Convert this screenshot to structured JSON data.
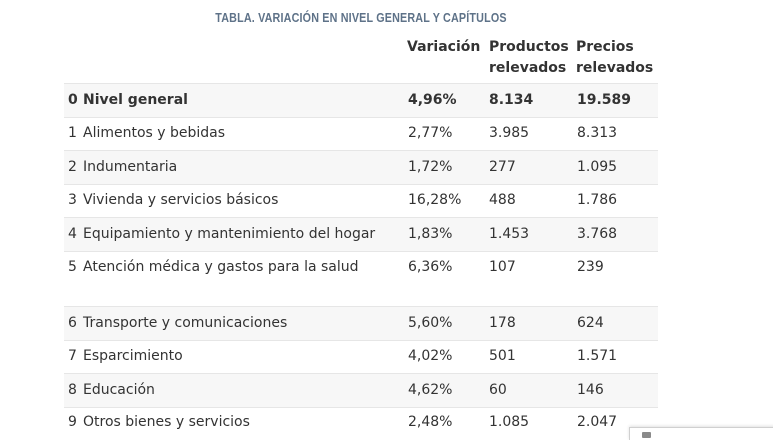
{
  "caption": "TABLA. VARIACIÓN EN NIVEL GENERAL Y CAPÍTULOS",
  "headers": {
    "variacion": "Variación",
    "productos_l1": "Productos",
    "productos_l2": "relevados",
    "precios_l1": "Precios",
    "precios_l2": "relevados"
  },
  "rows": [
    {
      "num": "0",
      "name": "Nivel general",
      "variacion": "4,96%",
      "productos": "8.134",
      "precios": "19.589"
    },
    {
      "num": "1",
      "name": "Alimentos y bebidas",
      "variacion": "2,77%",
      "productos": "3.985",
      "precios": "8.313"
    },
    {
      "num": "2",
      "name": "Indumentaria",
      "variacion": "1,72%",
      "productos": "277",
      "precios": "1.095"
    },
    {
      "num": "3",
      "name": "Vivienda y servicios básicos",
      "variacion": "16,28%",
      "productos": "488",
      "precios": "1.786"
    },
    {
      "num": "4",
      "name": "Equipamiento y mantenimiento del hogar",
      "variacion": "1,83%",
      "productos": "1.453",
      "precios": "3.768"
    },
    {
      "num": "5",
      "name": "Atención médica y gastos para la salud",
      "variacion": "6,36%",
      "productos": "107",
      "precios": "239"
    },
    {
      "num": "6",
      "name": "Transporte y comunicaciones",
      "variacion": "5,60%",
      "productos": "178",
      "precios": "624"
    },
    {
      "num": "7",
      "name": "Esparcimiento",
      "variacion": "4,02%",
      "productos": "501",
      "precios": "1.571"
    },
    {
      "num": "8",
      "name": "Educación",
      "variacion": "4,62%",
      "productos": "60",
      "precios": "146"
    },
    {
      "num": "9",
      "name": "Otros bienes y servicios",
      "variacion": "2,48%",
      "productos": "1.085",
      "precios": "2.047"
    }
  ]
}
